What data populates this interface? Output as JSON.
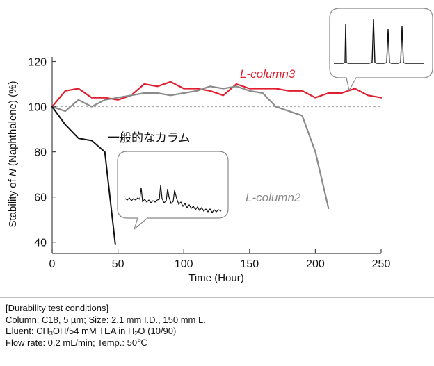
{
  "chart_data": {
    "type": "line",
    "xlabel": "Time (Hour)",
    "ylabel_parts": [
      "Stability of ",
      "N",
      " (Naphthalene) (%)"
    ],
    "xlim": [
      0,
      250
    ],
    "ylim": [
      35,
      122
    ],
    "x_ticks": [
      0,
      50,
      100,
      150,
      200,
      250
    ],
    "y_ticks": [
      40,
      60,
      80,
      100,
      120
    ],
    "reference_line": {
      "y": 100,
      "style": "dotted"
    },
    "grid": false,
    "colors": {
      "red": "#e02030",
      "gray": "#8a8a8a",
      "black": "#111111"
    },
    "series": [
      {
        "name": "L-column3",
        "color": "#e02030",
        "x": [
          0,
          10,
          20,
          30,
          40,
          50,
          60,
          70,
          80,
          90,
          100,
          110,
          120,
          130,
          140,
          150,
          160,
          170,
          180,
          190,
          200,
          210,
          220,
          230,
          240,
          250
        ],
        "y": [
          100,
          107,
          108,
          104,
          104,
          103,
          105,
          110,
          109,
          111,
          108,
          108,
          107,
          105,
          110,
          108,
          108,
          108,
          107,
          107,
          104,
          106,
          106,
          108,
          105,
          104
        ]
      },
      {
        "name": "L-column2",
        "color": "#8a8a8a",
        "x": [
          0,
          10,
          20,
          30,
          40,
          50,
          60,
          70,
          80,
          90,
          100,
          110,
          120,
          130,
          140,
          150,
          160,
          170,
          180,
          190,
          200,
          210
        ],
        "y": [
          100,
          98,
          103,
          100,
          103,
          104,
          105,
          106,
          106,
          105,
          106,
          107,
          109,
          108,
          109,
          107,
          106,
          100,
          98,
          96,
          80,
          55
        ]
      },
      {
        "name": "一般的なカラム",
        "color": "#111111",
        "x": [
          0,
          10,
          20,
          30,
          40,
          48
        ],
        "y": [
          100,
          92,
          86,
          85,
          80,
          39
        ]
      }
    ]
  },
  "conditions": {
    "header": "[Durability test conditions]",
    "column": "Column: C18, 5 µm; Size: 2.1 mm I.D., 150 mm L.",
    "eluent_parts": [
      "Eluent: CH",
      "3",
      "OH/54 mM TEA in H",
      "2",
      "O (10/90)"
    ],
    "flow": "Flow rate: 0.2 mL/min; Temp.: 50℃"
  }
}
